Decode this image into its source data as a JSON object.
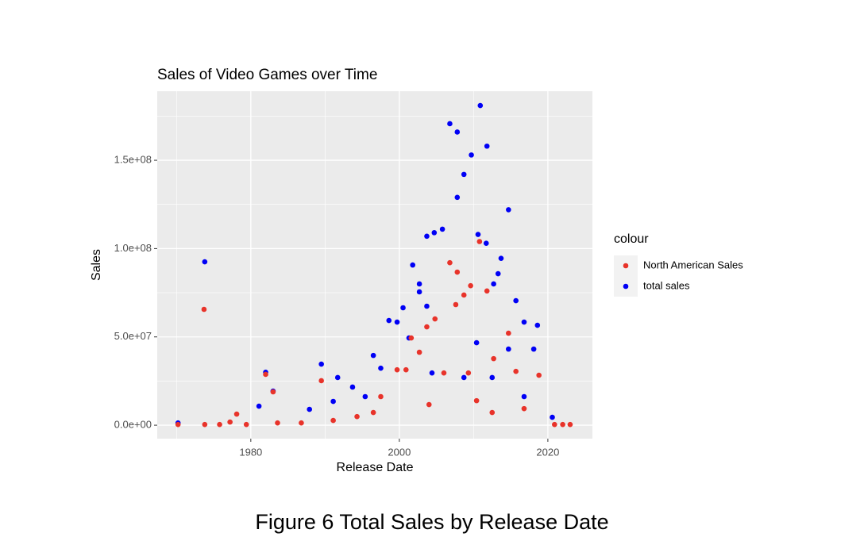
{
  "chart_data": {
    "type": "scatter",
    "title": "Sales of Video Games over Time",
    "x_label": "Release Date",
    "y_label": "Sales",
    "legend_title": "colour",
    "legend_position": "right",
    "caption": "Figure 6 Total Sales by Release Date",
    "grid": true,
    "xlim": [
      1967.4,
      2026.0
    ],
    "ylim": [
      -7600000,
      189100000
    ],
    "xticks": [
      1980,
      2000,
      2020
    ],
    "x_minor_ticks": [
      1970,
      1990,
      2010
    ],
    "yticks": [
      {
        "value": 0,
        "label": "0.0e+00"
      },
      {
        "value": 50000000,
        "label": "5.0e+07"
      },
      {
        "value": 100000000,
        "label": "1.0e+08"
      },
      {
        "value": 150000000,
        "label": "1.5e+08"
      }
    ],
    "y_minor_ticks": [
      25000000,
      75000000,
      125000000,
      175000000
    ],
    "series": [
      {
        "name": "North American Sales",
        "color": "#e8332a",
        "x": [
          2010.8,
          2006.8,
          2007.8,
          2009.6,
          2008.7,
          2011.8,
          1973.7,
          2007.6,
          2004.8,
          2003.7,
          2001.6,
          2002.7,
          2012.7,
          2014.7,
          1989.5,
          1982.0,
          1983.0,
          2018.8,
          1999.7,
          2000.9,
          2006.0,
          2009.3,
          2015.7,
          1997.5,
          2004.0,
          2010.4,
          2012.5,
          2016.8,
          1970.2,
          1973.8,
          1975.8,
          1977.2,
          1978.1,
          1979.4,
          1983.6,
          1986.8,
          1991.1,
          1994.3,
          1996.5,
          2020.9,
          2022.0,
          2023.0
        ],
        "values": [
          104000000,
          92000000,
          86700000,
          79000000,
          73700000,
          76000000,
          65600000,
          68300000,
          60200000,
          55700000,
          49400000,
          41300000,
          37700000,
          52100000,
          25200000,
          28800000,
          18900000,
          28300000,
          31400000,
          31400000,
          29600000,
          29600000,
          30500000,
          16200000,
          11700000,
          13900000,
          7200000,
          9400000,
          400000,
          400000,
          400000,
          1800000,
          6300000,
          400000,
          1300000,
          1300000,
          2700000,
          4900000,
          7200000,
          400000,
          400000,
          400000
        ]
      },
      {
        "name": "total sales",
        "color": "#0000f5",
        "x": [
          2010.9,
          2006.8,
          2007.8,
          2011.8,
          2009.7,
          2008.7,
          2007.8,
          2014.7,
          2005.8,
          2004.7,
          2003.7,
          2010.6,
          2011.7,
          1973.8,
          2013.7,
          2001.8,
          2013.3,
          2012.7,
          2002.7,
          2002.7,
          2015.7,
          2000.5,
          2003.7,
          1998.6,
          1999.7,
          2018.6,
          2016.8,
          1989.5,
          1982.0,
          1983.0,
          1991.7,
          1993.7,
          1997.5,
          1996.5,
          2001.3,
          2010.4,
          2014.7,
          2018.1,
          1981.1,
          1991.1,
          1995.4,
          2004.4,
          2008.7,
          2012.5,
          2020.6,
          1970.2,
          1987.9,
          2016.8
        ],
        "values": [
          181000000,
          170700000,
          166000000,
          158000000,
          153000000,
          142000000,
          129000000,
          122000000,
          111000000,
          109000000,
          107000000,
          108000000,
          103000000,
          92500000,
          94500000,
          90700000,
          85800000,
          80000000,
          80000000,
          75500000,
          70500000,
          66500000,
          67400000,
          59300000,
          58400000,
          56600000,
          58400000,
          34600000,
          30000000,
          19300000,
          27000000,
          21600000,
          32300000,
          39500000,
          49400000,
          46700000,
          43100000,
          43100000,
          10800000,
          13500000,
          16200000,
          29600000,
          27000000,
          27000000,
          4500000,
          1300000,
          9000000,
          16200000
        ]
      }
    ]
  }
}
